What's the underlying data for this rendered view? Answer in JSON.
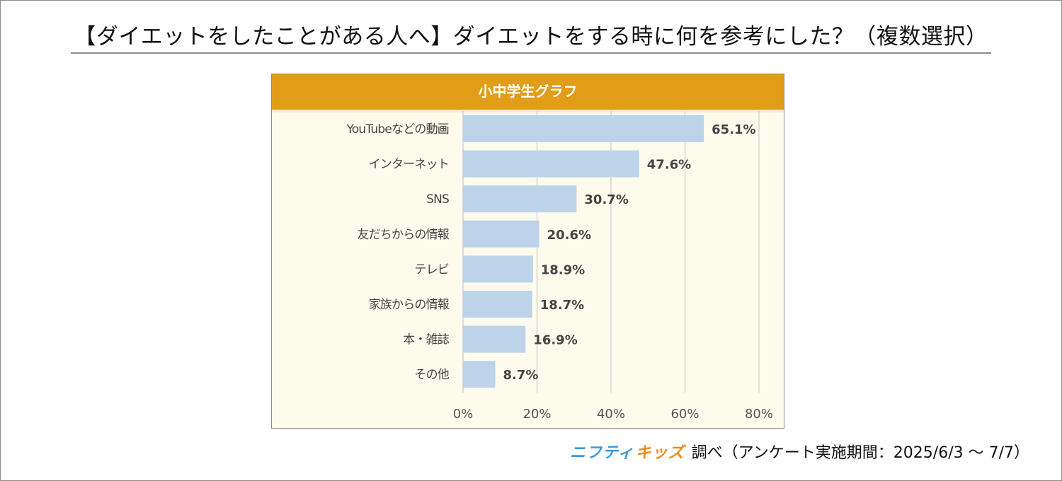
{
  "page": {
    "title": "【ダイエットをしたことがある人へ】ダイエットをする時に何を参考にした？（複数選択）"
  },
  "chart_data": {
    "type": "bar",
    "orientation": "horizontal",
    "title": "小中学生グラフ",
    "categories": [
      "YouTubeなどの動画",
      "インターネット",
      "SNS",
      "友だちからの情報",
      "テレビ",
      "家族からの情報",
      "本・雑誌",
      "その他"
    ],
    "values": [
      65.1,
      47.6,
      30.7,
      20.6,
      18.9,
      18.7,
      16.9,
      8.7
    ],
    "value_labels": [
      "65.1%",
      "47.6%",
      "30.7%",
      "20.6%",
      "18.9%",
      "18.7%",
      "16.9%",
      "8.7%"
    ],
    "xlim": [
      0,
      80
    ],
    "xticks": [
      0,
      20,
      40,
      60,
      80
    ],
    "xtick_labels": [
      "0%",
      "20%",
      "40%",
      "60%",
      "80%"
    ],
    "grid": true,
    "bar_color": "#bcd3ea"
  },
  "footer": {
    "brand_part1": "ニフティ",
    "brand_part2": "キッズ",
    "note": "調べ（アンケート実施期間：2025/6/3 ～ 7/7）"
  }
}
